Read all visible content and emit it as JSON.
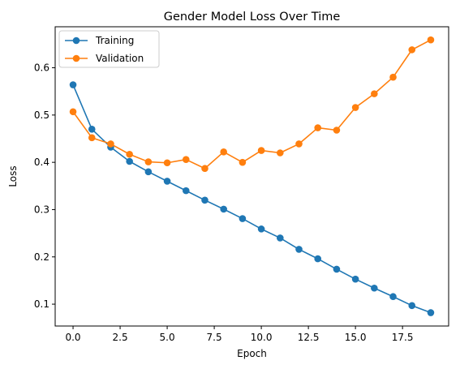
{
  "chart_data": {
    "type": "line",
    "title": "Gender Model Loss Over Time",
    "xlabel": "Epoch",
    "ylabel": "Loss",
    "x": [
      0,
      1,
      2,
      3,
      4,
      5,
      6,
      7,
      8,
      9,
      10,
      11,
      12,
      13,
      14,
      15,
      16,
      17,
      18,
      19
    ],
    "xlim": [
      -0.95,
      19.95
    ],
    "ylim": [
      0.0538,
      0.6867
    ],
    "x_ticks": [
      0,
      2.5,
      5,
      7.5,
      10,
      12.5,
      15,
      17.5
    ],
    "x_tick_labels": [
      "0.0",
      "2.5",
      "5.0",
      "7.5",
      "10.0",
      "12.5",
      "15.0",
      "17.5"
    ],
    "y_ticks": [
      0.1,
      0.2,
      0.3,
      0.4,
      0.5,
      0.6
    ],
    "y_tick_labels": [
      "0.1",
      "0.2",
      "0.3",
      "0.4",
      "0.5",
      "0.6"
    ],
    "grid": false,
    "legend_position": "top-left",
    "series": [
      {
        "name": "Training",
        "color": "#1f77b4",
        "values": [
          0.564,
          0.47,
          0.432,
          0.402,
          0.38,
          0.36,
          0.34,
          0.32,
          0.301,
          0.281,
          0.259,
          0.24,
          0.216,
          0.196,
          0.174,
          0.153,
          0.134,
          0.116,
          0.097,
          0.082
        ]
      },
      {
        "name": "Validation",
        "color": "#ff7f0e",
        "values": [
          0.507,
          0.452,
          0.439,
          0.417,
          0.401,
          0.399,
          0.406,
          0.387,
          0.422,
          0.4,
          0.425,
          0.42,
          0.439,
          0.473,
          0.468,
          0.516,
          0.545,
          0.58,
          0.638,
          0.659
        ]
      }
    ]
  }
}
